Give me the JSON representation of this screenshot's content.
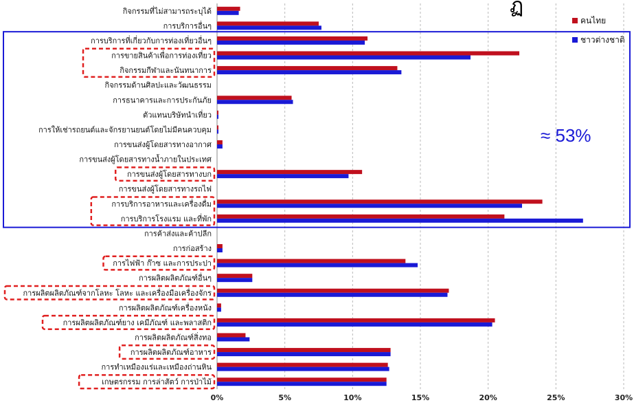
{
  "chart_data": {
    "type": "bar",
    "orientation": "horizontal",
    "title_fragment": "ฏ",
    "xlim": [
      0,
      30
    ],
    "x_ticks": [
      "0%",
      "5%",
      "10%",
      "15%",
      "20%",
      "25%",
      "30%"
    ],
    "grid": "vertical dashed",
    "legend_position": "top-right",
    "categories": [
      "กิจกรรมที่ไม่สามารถระบุได้",
      "การบริการอื่นๆ",
      "การบริการที่เกี่ยวกับการท่องเที่ยวอื่นๆ",
      "การขายสินค้าเพื่อการท่องเที่ยว",
      "กิจกรรมกีฬาและนันทนาการ",
      "กิจกรรมด้านศิลปะและวัฒนธรรม",
      "การธนาคารและการประกันภัย",
      "ตัวแทนบริษัทนำเที่ยว",
      "การให้เช่ารถยนต์และจักรยานยนต์โดยไม่มีคนควบคุม",
      "การขนส่งผู้โดยสารทางอากาศ",
      "การขนส่งผู้โดยสารทางน้ำภายในประเทศ",
      "การขนส่งผู้โดยสารทางบก",
      "การขนส่งผู้โดยสารทางรถไฟ",
      "การบริการอาหารและเครื่องดื่ม",
      "การบริการโรงแรม และที่พัก",
      "การค้าส่งและค้าปลีก",
      "การก่อสร้าง",
      "การไฟฟ้า ก๊าซ และการประปา",
      "การผลิตผลิตภัณฑ์อื่นๆ",
      "การผลิตผลิตภัณฑ์จากโลหะ โลหะ และเครื่องมือเครื่องจักร",
      "การผลิตผลิตภัณฑ์เครื่องหนัง",
      "การผลิตผลิตภัณฑ์ยาง เคมีภัณฑ์ และพลาสติก",
      "การผลิตผลิตภัณฑ์สิ่งทอ",
      "การผลิตผลิตภัณฑ์อาหาร",
      "การทำเหมืองแร่และเหมืองถ่านหิน",
      "เกษตรกรรม การล่าสัตว์ การป่าไม้"
    ],
    "series": [
      {
        "name": "คนไทย",
        "color": "#c0101e",
        "values": [
          1.7,
          7.5,
          11.1,
          22.3,
          13.3,
          0.0,
          5.5,
          0.1,
          0.1,
          0.4,
          0.0,
          10.7,
          0.0,
          24.0,
          21.2,
          0.0,
          0.4,
          13.9,
          2.6,
          17.1,
          0.3,
          20.5,
          2.1,
          12.8,
          12.6,
          12.5
        ]
      },
      {
        "name": "ชาวต่างชาติ",
        "color": "#1a1ad6",
        "values": [
          1.6,
          7.7,
          10.9,
          18.7,
          13.6,
          0.0,
          5.6,
          0.1,
          0.1,
          0.4,
          0.0,
          9.7,
          0.0,
          22.5,
          27.0,
          0.0,
          0.4,
          14.8,
          2.6,
          17.0,
          0.3,
          20.3,
          2.4,
          12.8,
          12.7,
          12.5
        ]
      }
    ],
    "highlighted_categories": [
      "การขายสินค้าเพื่อการท่องเที่ยว",
      "กิจกรรมกีฬาและนันทนาการ",
      "การขนส่งผู้โดยสารทางบก",
      "การบริการอาหารและเครื่องดื่ม",
      "การบริการโรงแรม และที่พัก",
      "การไฟฟ้า ก๊าซ และการประปา",
      "การผลิตผลิตภัณฑ์จากโลหะ โลหะ และเครื่องมือเครื่องจักร",
      "การผลิตผลิตภัณฑ์ยาง เคมีภัณฑ์ และพลาสติก",
      "การผลิตผลิตภัณฑ์อาหาร",
      "เกษตรกรรม การล่าสัตว์ การป่าไม้"
    ],
    "tourism_group_box": {
      "from": "การบริการที่เกี่ยวกับการท่องเที่ยวอื่นๆ",
      "to": "การบริการโรงแรม และที่พัก",
      "annotation": "≈ 53%",
      "color": "#1a1ad6"
    },
    "highlight_color": "#e02020"
  }
}
